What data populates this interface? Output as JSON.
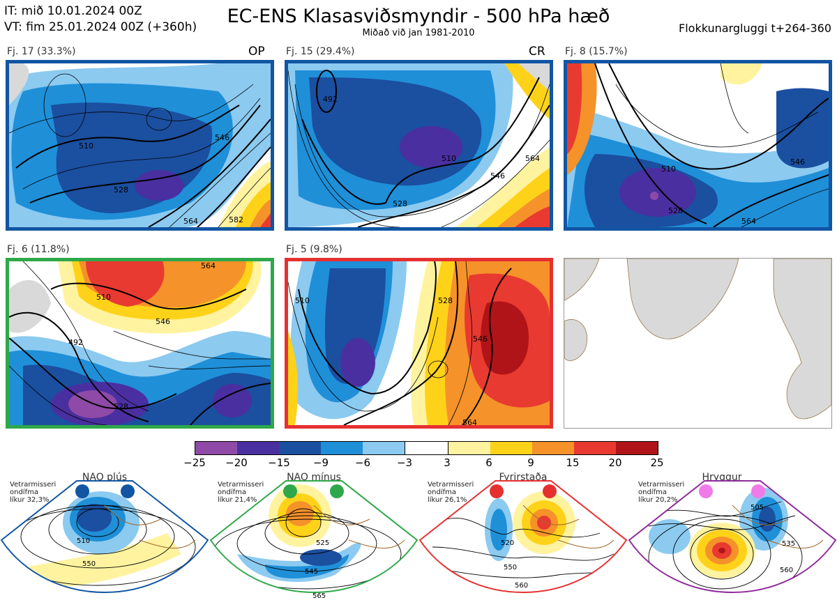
{
  "header": {
    "it_line": "IT: mið 10.01.2024 00Z",
    "vt_line": "VT: fim 25.01.2024 00Z  (+360h)",
    "title": "EC-ENS Klasasviðsmyndir - 500 hPa hæð",
    "subtitle": "Miðað við jan 1981-2010",
    "window": "Flokkunargluggi t+264-360"
  },
  "panels": [
    {
      "label": "Fj. 17 (33.3%)",
      "tag": "OP",
      "frame_color": "#1155a3",
      "contours": [
        "510",
        "528",
        "546",
        "564",
        "582"
      ]
    },
    {
      "label": "Fj. 15 (29.4%)",
      "tag": "CR",
      "frame_color": "#1155a3",
      "contours": [
        "492",
        "510",
        "528",
        "546",
        "564"
      ]
    },
    {
      "label": "Fj. 8 (15.7%)",
      "tag": "",
      "frame_color": "#1155a3",
      "contours": [
        "510",
        "528",
        "546",
        "564"
      ]
    },
    {
      "label": "Fj. 6 (11.8%)",
      "tag": "",
      "frame_color": "#2ea84a",
      "contours": [
        "492",
        "510",
        "528",
        "546",
        "564"
      ]
    },
    {
      "label": "Fj. 5 (9.8%)",
      "tag": "",
      "frame_color": "#e63030",
      "contours": [
        "510",
        "528",
        "546",
        "564"
      ]
    }
  ],
  "colorbar": {
    "ticks": [
      "−25",
      "−20",
      "−15",
      "−9",
      "−6",
      "−3",
      "3",
      "6",
      "9",
      "15",
      "20",
      "25"
    ],
    "colors": [
      "#8e4aa6",
      "#4a2fa0",
      "#1b4fa0",
      "#1f8fd8",
      "#8ccaf0",
      "#ffffff",
      "#fff3a0",
      "#ffd21a",
      "#f5922a",
      "#e83a30",
      "#b01418"
    ]
  },
  "regimes": [
    {
      "name": "NAO plús",
      "stats": "Vetrarmisseri\nondífma\nlíkur 32,3%",
      "color": "#1155a3",
      "contours": [
        "510",
        "550"
      ]
    },
    {
      "name": "NAO mínus",
      "stats": "Vetrarmisseri\nondífma\nlíkur 21,4%",
      "color": "#2ea84a",
      "contours": [
        "525",
        "545",
        "565"
      ]
    },
    {
      "name": "Fyrirstaða",
      "stats": "Vetrarmisseri\nondífma\nlíkur 26,1%",
      "color": "#e63030",
      "contours": [
        "520",
        "550",
        "560"
      ]
    },
    {
      "name": "Hryggur",
      "stats": "Vetrarmisseri\nondífma\nlíkur 20,2%",
      "color": "#8e2a9a",
      "contours": [
        "505",
        "535",
        "560"
      ]
    }
  ]
}
